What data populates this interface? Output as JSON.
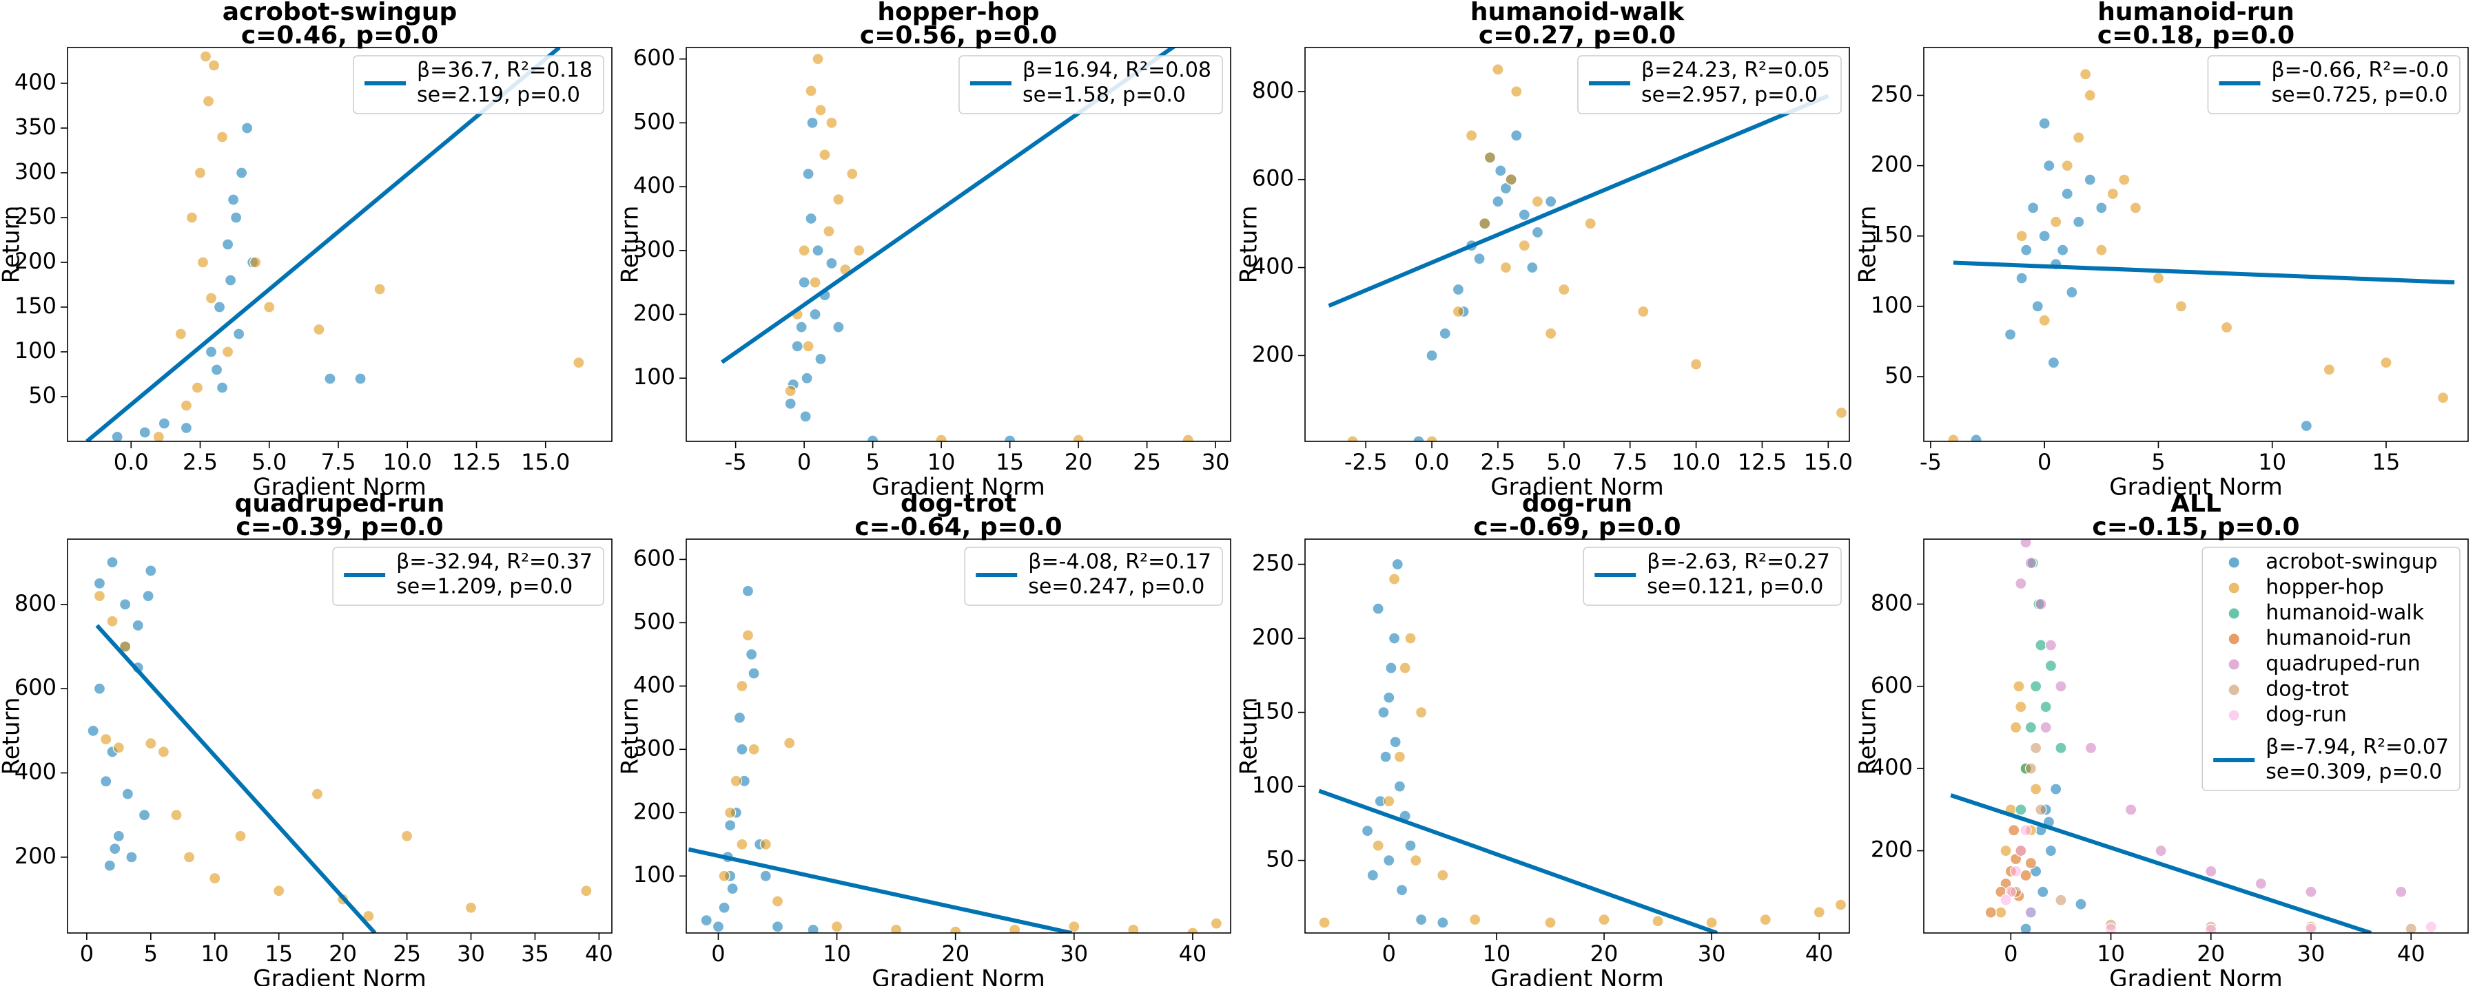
{
  "chart_data": [
    {
      "type": "scatter",
      "title": "acrobot-swingup",
      "subtitle": "c=0.46, p=0.0",
      "xlabel": "Gradient Norm",
      "ylabel": "Return",
      "xlim": [
        -2.3,
        17.4
      ],
      "ylim": [
        0,
        440
      ],
      "xticks": [
        {
          "value": 0,
          "label": "0.0"
        },
        2.5,
        {
          "value": 5,
          "label": "5.0"
        },
        7.5,
        {
          "value": 10,
          "label": "10.0"
        },
        12.5,
        {
          "value": 15,
          "label": "15.0"
        }
      ],
      "yticks": [
        50,
        100,
        150,
        200,
        250,
        300,
        350,
        400
      ],
      "series": [
        {
          "color": "#0173b2",
          "x": [
            3.2,
            3.5,
            4.0,
            3.8,
            2.9,
            3.6,
            4.2,
            3.1,
            0.5,
            1.2,
            -0.5,
            2.0,
            3.9,
            4.4,
            7.2,
            8.3,
            3.3,
            3.7
          ],
          "values": [
            150,
            220,
            300,
            250,
            100,
            180,
            350,
            80,
            10,
            20,
            5,
            15,
            120,
            200,
            70,
            70,
            60,
            270
          ]
        },
        {
          "color": "#de8f05",
          "x": [
            2.5,
            2.8,
            3.0,
            2.2,
            2.6,
            3.3,
            1.8,
            2.9,
            2.4,
            3.5,
            4.5,
            5.0,
            6.8,
            9.0,
            16.2,
            1.0,
            2.0,
            2.7
          ],
          "values": [
            300,
            380,
            420,
            250,
            200,
            340,
            120,
            160,
            60,
            100,
            200,
            150,
            125,
            170,
            88,
            5,
            40,
            430
          ]
        }
      ],
      "fit": {
        "color": "#0173b2",
        "label": [
          "β=36.7, R²=0.18",
          "se=2.19, p=0.0"
        ],
        "x": [
          -1.6,
          15.5
        ],
        "y": [
          0,
          440
        ]
      }
    },
    {
      "type": "scatter",
      "title": "hopper-hop",
      "subtitle": "c=0.56, p=0.0",
      "xlabel": "Gradient Norm",
      "ylabel": "Return",
      "xlim": [
        -8.6,
        31.1
      ],
      "ylim": [
        1,
        618
      ],
      "xticks": [
        -5,
        0,
        5,
        10,
        15,
        20,
        25,
        30
      ],
      "yticks": [
        100,
        200,
        300,
        400,
        500,
        600
      ],
      "series": [
        {
          "color": "#0173b2",
          "x": [
            0.2,
            -0.5,
            0.8,
            0.0,
            1.0,
            -1.0,
            0.5,
            0.3,
            -0.2,
            1.5,
            2.0,
            0.6,
            -0.8,
            1.2,
            2.5,
            0.1,
            5,
            15
          ],
          "values": [
            100,
            150,
            200,
            250,
            300,
            60,
            350,
            420,
            180,
            230,
            280,
            500,
            90,
            130,
            180,
            40,
            2,
            2
          ]
        },
        {
          "color": "#de8f05",
          "x": [
            0.5,
            1.0,
            1.5,
            2.0,
            0.0,
            -0.5,
            2.5,
            3.0,
            1.2,
            0.8,
            1.8,
            4.0,
            -1.0,
            0.3,
            10,
            20,
            28,
            3.5
          ],
          "values": [
            550,
            600,
            450,
            500,
            300,
            200,
            380,
            270,
            520,
            250,
            330,
            300,
            80,
            150,
            3,
            3,
            3,
            420
          ]
        }
      ],
      "fit": {
        "color": "#0173b2",
        "label": [
          "β=16.94, R²=0.08",
          "se=1.58, p=0.0"
        ],
        "x": [
          -6,
          27
        ],
        "y": [
          125,
          620
        ]
      }
    },
    {
      "type": "scatter",
      "title": "humanoid-walk",
      "subtitle": "c=0.27, p=0.0",
      "xlabel": "Gradient Norm",
      "ylabel": "Return",
      "xlim": [
        -4.8,
        15.8
      ],
      "ylim": [
        5,
        900
      ],
      "xticks": [
        -2.5,
        {
          "value": 0,
          "label": "0.0"
        },
        2.5,
        {
          "value": 5,
          "label": "5.0"
        },
        7.5,
        {
          "value": 10,
          "label": "10.0"
        },
        12.5,
        {
          "value": 15,
          "label": "15.0"
        }
      ],
      "yticks": [
        200,
        400,
        600,
        800
      ],
      "series": [
        {
          "color": "#0173b2",
          "x": [
            2,
            2.5,
            3,
            1.5,
            3.5,
            2.2,
            1.0,
            0.5,
            4,
            2.8,
            1.8,
            3.2,
            0.0,
            -0.5,
            1.2,
            4.5,
            2.6,
            3.8
          ],
          "values": [
            500,
            550,
            600,
            450,
            520,
            650,
            350,
            250,
            480,
            580,
            420,
            700,
            200,
            5,
            300,
            550,
            620,
            400
          ]
        },
        {
          "color": "#de8f05",
          "x": [
            1.5,
            2.5,
            3.0,
            2.0,
            3.5,
            4.0,
            1.0,
            2.8,
            5.0,
            6.0,
            3.2,
            2.2,
            8.0,
            10,
            15.5,
            -3,
            0,
            4.5
          ],
          "values": [
            700,
            850,
            600,
            500,
            450,
            550,
            300,
            400,
            350,
            500,
            800,
            650,
            300,
            180,
            70,
            5,
            5,
            250
          ]
        }
      ],
      "fit": {
        "color": "#0173b2",
        "label": [
          "β=24.23, R²=0.05",
          "se=2.957, p=0.0"
        ],
        "x": [
          -3.9,
          15.0
        ],
        "y": [
          313,
          790
        ]
      }
    },
    {
      "type": "scatter",
      "title": "humanoid-run",
      "subtitle": "c=0.18, p=0.0",
      "xlabel": "Gradient Norm",
      "ylabel": "Return",
      "xlim": [
        -5.3,
        18.6
      ],
      "ylim": [
        4,
        284
      ],
      "xticks": [
        -5,
        0,
        5,
        10,
        15
      ],
      "yticks": [
        50,
        100,
        150,
        200,
        250
      ],
      "series": [
        {
          "color": "#0173b2",
          "x": [
            0,
            -0.5,
            0.5,
            1.0,
            -1.0,
            0.2,
            1.5,
            -0.3,
            0.8,
            2.0,
            -1.5,
            0.0,
            -3,
            1.2,
            11.5,
            0.4,
            -0.8,
            2.5
          ],
          "values": [
            150,
            170,
            130,
            180,
            120,
            200,
            160,
            100,
            140,
            190,
            80,
            230,
            5,
            110,
            15,
            60,
            140,
            170
          ]
        },
        {
          "color": "#de8f05",
          "x": [
            1,
            2,
            3,
            0.5,
            1.5,
            2.5,
            4,
            5,
            0,
            -1,
            8,
            12.5,
            15,
            17.5,
            3.5,
            1.8,
            -4,
            6
          ],
          "values": [
            200,
            250,
            180,
            160,
            220,
            140,
            170,
            120,
            90,
            150,
            85,
            55,
            60,
            35,
            190,
            265,
            5,
            100
          ]
        }
      ],
      "fit": {
        "color": "#0173b2",
        "label": [
          "β=-0.66, R²=-0.0",
          "se=0.725, p=0.0"
        ],
        "x": [
          -4,
          18
        ],
        "y": [
          131,
          117
        ]
      }
    },
    {
      "type": "scatter",
      "title": "quadruped-run",
      "subtitle": "c=-0.39, p=0.0",
      "xlabel": "Gradient Norm",
      "ylabel": "Return",
      "xlim": [
        -1.5,
        41
      ],
      "ylim": [
        20,
        955
      ],
      "xticks": [
        0,
        5,
        10,
        15,
        20,
        25,
        30,
        35,
        40
      ],
      "yticks": [
        200,
        400,
        600,
        800
      ],
      "series": [
        {
          "color": "#0173b2",
          "x": [
            1,
            2,
            3,
            4,
            5,
            1.5,
            2.5,
            3.5,
            4.5,
            1,
            2,
            3,
            4,
            1.8,
            2.2,
            3.2,
            4.8,
            0.5
          ],
          "values": [
            850,
            900,
            800,
            750,
            880,
            380,
            250,
            200,
            300,
            600,
            450,
            700,
            650,
            180,
            220,
            350,
            820,
            500
          ]
        },
        {
          "color": "#de8f05",
          "x": [
            1,
            2,
            3,
            1.5,
            2.5,
            5,
            6,
            7,
            8,
            10,
            12,
            15,
            18,
            20,
            25,
            30,
            39,
            22
          ],
          "values": [
            820,
            760,
            700,
            480,
            460,
            470,
            450,
            300,
            200,
            150,
            250,
            120,
            350,
            100,
            250,
            80,
            120,
            60
          ]
        }
      ],
      "fit": {
        "color": "#0173b2",
        "label": [
          "β=-32.94, R²=0.37",
          "se=1.209, p=0.0"
        ],
        "x": [
          0.8,
          22.5
        ],
        "y": [
          750,
          20
        ]
      }
    },
    {
      "type": "scatter",
      "title": "dog-trot",
      "subtitle": "c=-0.64, p=0.0",
      "xlabel": "Gradient Norm",
      "ylabel": "Return",
      "xlim": [
        -2.7,
        43.2
      ],
      "ylim": [
        10,
        632
      ],
      "xticks": [
        0,
        10,
        20,
        30,
        40
      ],
      "yticks": [
        100,
        200,
        300,
        400,
        500,
        600
      ],
      "series": [
        {
          "color": "#0173b2",
          "x": [
            1,
            2,
            3,
            1.5,
            2.5,
            0.5,
            1.8,
            2.2,
            3.5,
            0,
            5,
            8,
            -1,
            1.2,
            2.8,
            4,
            1,
            0.8
          ],
          "values": [
            100,
            300,
            420,
            200,
            550,
            50,
            350,
            250,
            150,
            20,
            20,
            15,
            30,
            80,
            450,
            100,
            180,
            130
          ]
        },
        {
          "color": "#de8f05",
          "x": [
            1,
            2,
            3,
            0.5,
            1.5,
            2.5,
            4,
            6,
            10,
            15,
            20,
            25,
            30,
            35,
            40,
            42,
            2,
            5
          ],
          "values": [
            200,
            400,
            300,
            100,
            250,
            480,
            150,
            310,
            20,
            15,
            12,
            15,
            20,
            15,
            10,
            25,
            150,
            60
          ]
        }
      ],
      "fit": {
        "color": "#0173b2",
        "label": [
          "β=-4.08, R²=0.17",
          "se=0.247, p=0.0"
        ],
        "x": [
          -2.5,
          29.8
        ],
        "y": [
          142,
          10
        ]
      }
    },
    {
      "type": "scatter",
      "title": "dog-run",
      "subtitle": "c=-0.69, p=0.0",
      "xlabel": "Gradient Norm",
      "ylabel": "Return",
      "xlim": [
        -7.8,
        42.8
      ],
      "ylim": [
        1,
        267
      ],
      "xticks": [
        0,
        10,
        20,
        30,
        40
      ],
      "yticks": [
        50,
        100,
        150,
        200,
        250
      ],
      "series": [
        {
          "color": "#0173b2",
          "x": [
            0,
            1,
            -0.5,
            0.5,
            -1,
            1.5,
            0.2,
            -0.3,
            2,
            0.8,
            -1.5,
            1.2,
            3,
            5,
            -2,
            0,
            0.6,
            -0.8
          ],
          "values": [
            50,
            100,
            150,
            200,
            220,
            80,
            180,
            120,
            60,
            250,
            40,
            30,
            10,
            8,
            70,
            160,
            130,
            90
          ]
        },
        {
          "color": "#de8f05",
          "x": [
            0,
            1,
            2,
            3,
            -1,
            1.5,
            5,
            8,
            15,
            20,
            25,
            30,
            35,
            40,
            42,
            2.5,
            0.5,
            -6
          ],
          "values": [
            90,
            120,
            200,
            150,
            60,
            180,
            40,
            10,
            8,
            10,
            9,
            8,
            10,
            15,
            20,
            50,
            240,
            8
          ]
        }
      ],
      "fit": {
        "color": "#0173b2",
        "label": [
          "β=-2.63, R²=0.27",
          "se=0.121, p=0.0"
        ],
        "x": [
          -6.5,
          30.5
        ],
        "y": [
          97,
          1
        ]
      }
    },
    {
      "type": "scatter",
      "title": "ALL",
      "subtitle": "c=-0.15, p=0.0",
      "xlabel": "Gradient Norm",
      "ylabel": "Return",
      "xlim": [
        -8.7,
        45.7
      ],
      "ylim": [
        0,
        958
      ],
      "xticks": [
        0,
        10,
        20,
        30,
        40
      ],
      "yticks": [
        200,
        400,
        600,
        800
      ],
      "series": [
        {
          "name": "acrobot-swingup",
          "color": "#0173b2",
          "x": [
            2.5,
            3,
            3.5,
            4,
            2,
            3.2,
            4.5,
            1.5,
            3.8,
            7
          ],
          "values": [
            150,
            250,
            300,
            200,
            50,
            100,
            350,
            10,
            270,
            70
          ]
        },
        {
          "name": "hopper-hop",
          "color": "#de8f05",
          "x": [
            0,
            0.5,
            1,
            -0.5,
            1.5,
            2,
            0.2,
            -1,
            2.5,
            0.8
          ],
          "values": [
            300,
            500,
            550,
            200,
            400,
            250,
            100,
            50,
            350,
            600
          ]
        },
        {
          "name": "humanoid-walk",
          "color": "#029e73",
          "x": [
            2,
            2.5,
            3,
            1.5,
            3.5,
            4,
            2.8,
            1,
            5,
            2.2
          ],
          "values": [
            500,
            600,
            700,
            400,
            550,
            650,
            800,
            300,
            450,
            900
          ]
        },
        {
          "name": "humanoid-run",
          "color": "#d55e00",
          "x": [
            0,
            -0.5,
            0.5,
            1,
            -1,
            1.5,
            0.3,
            -2,
            2,
            0.8
          ],
          "values": [
            150,
            120,
            180,
            200,
            100,
            140,
            250,
            50,
            170,
            90
          ]
        },
        {
          "name": "quadruped-run",
          "color": "#cc78bc",
          "x": [
            1,
            2,
            3,
            4,
            5,
            8,
            12,
            15,
            20,
            25,
            30,
            39,
            1.5,
            3.5
          ],
          "values": [
            850,
            900,
            800,
            700,
            600,
            450,
            300,
            200,
            150,
            120,
            100,
            100,
            950,
            500
          ]
        },
        {
          "name": "dog-trot",
          "color": "#ca9161",
          "x": [
            1,
            2,
            3,
            0.5,
            10,
            20,
            30,
            40,
            2.5,
            5
          ],
          "values": [
            200,
            400,
            300,
            100,
            20,
            15,
            15,
            10,
            450,
            80
          ]
        },
        {
          "name": "dog-run",
          "color": "#fbafe4",
          "x": [
            0,
            1,
            0.5,
            -0.5,
            10,
            20,
            30,
            42,
            1.5,
            2
          ],
          "values": [
            100,
            200,
            150,
            80,
            10,
            8,
            10,
            15,
            250,
            50
          ]
        }
      ],
      "fit": {
        "color": "#0173b2",
        "label": [
          "β=-7.94, R²=0.07",
          "se=0.309, p=0.0"
        ],
        "x": [
          -6,
          36
        ],
        "y": [
          335,
          0
        ]
      }
    }
  ]
}
